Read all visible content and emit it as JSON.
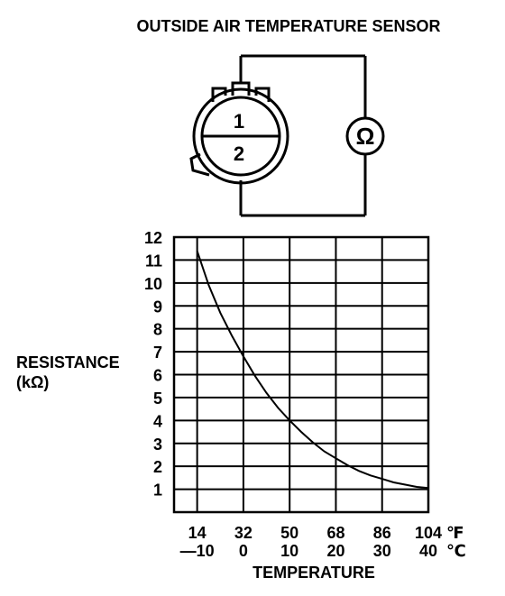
{
  "page_title": "OUTSIDE AIR TEMPERATURE SENSOR",
  "diagram": {
    "pin_top": "1",
    "pin_bottom": "2",
    "meter_symbol": "Ω"
  },
  "colors": {
    "ink": "#000000",
    "background": "#ffffff"
  },
  "chart_data": {
    "type": "line",
    "title": "",
    "ylabel": "RESISTANCE",
    "ylabel_unit": "(kΩ)",
    "xlabel": "TEMPERATURE",
    "ylim": [
      0,
      12
    ],
    "y_ticks": [
      1,
      2,
      3,
      4,
      5,
      6,
      7,
      8,
      9,
      10,
      11,
      12
    ],
    "xlim": [
      -15,
      40
    ],
    "x_ticks_celsius": [
      -10,
      0,
      10,
      20,
      30,
      40
    ],
    "x_tick_labels_fahrenheit": [
      "14",
      "32",
      "50",
      "68",
      "86",
      "104"
    ],
    "x_tick_labels_celsius": [
      "—10",
      "0",
      "10",
      "20",
      "30",
      "40"
    ],
    "x_unit_fahrenheit": "℉",
    "x_unit_celsius": "℃",
    "grid": true,
    "series": [
      {
        "x": [
          -10,
          -7.5,
          -5,
          -2.5,
          0,
          2.5,
          5,
          7.5,
          10,
          12.5,
          15,
          17.5,
          20,
          22.5,
          25,
          27.5,
          30,
          32.5,
          35,
          37.5,
          40
        ],
        "y": [
          11.4,
          9.9,
          8.7,
          7.7,
          6.8,
          5.95,
          5.2,
          4.55,
          4.0,
          3.5,
          3.05,
          2.65,
          2.35,
          2.05,
          1.8,
          1.6,
          1.45,
          1.3,
          1.2,
          1.1,
          1.05
        ]
      }
    ]
  }
}
